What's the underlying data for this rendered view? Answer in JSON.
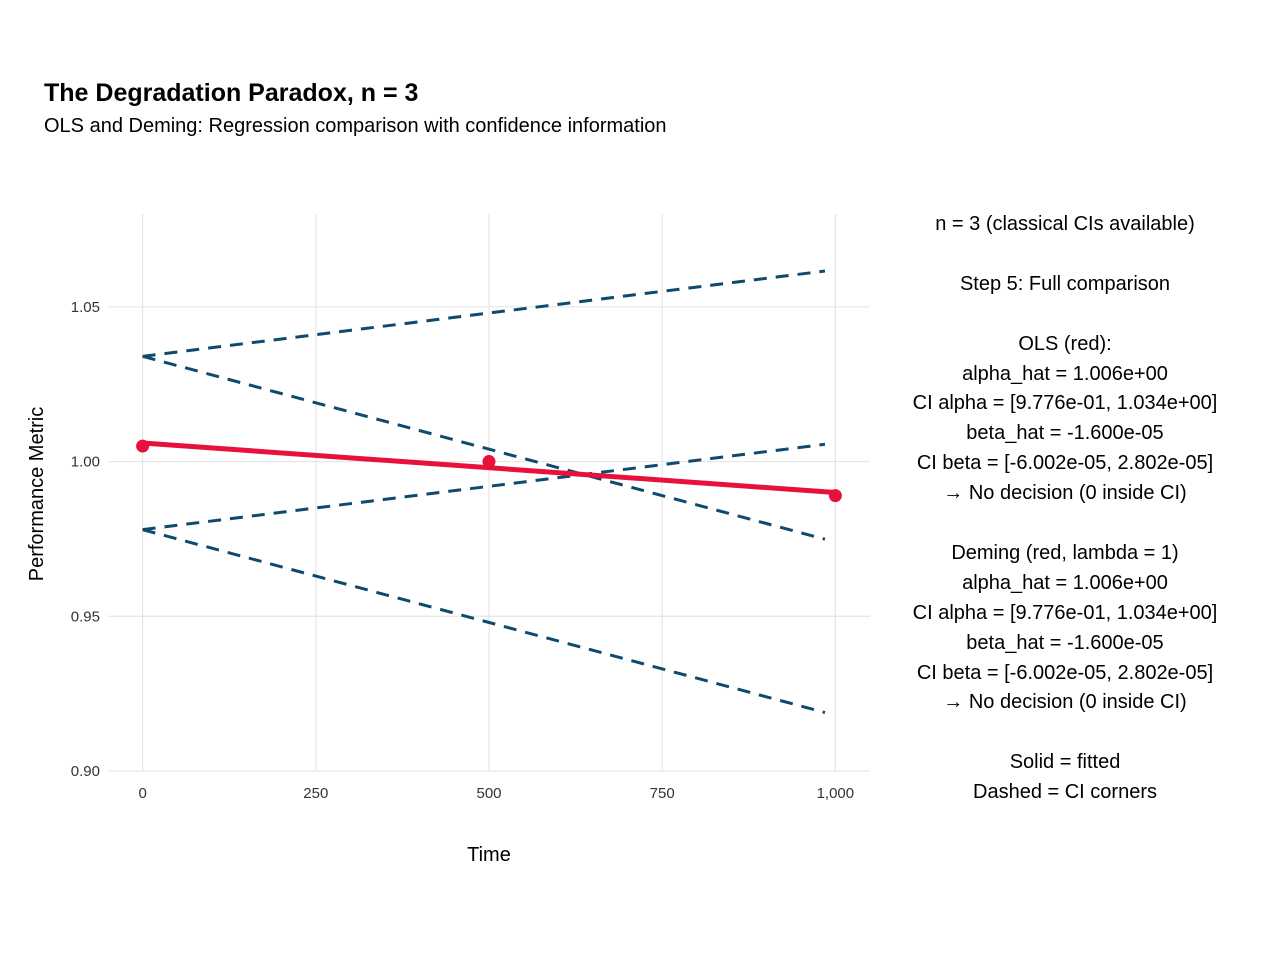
{
  "header": {
    "title": "The Degradation Paradox, n = 3",
    "subtitle": "OLS and Deming: Regression comparison with confidence information"
  },
  "colors": {
    "fit": "#e8113c",
    "ci": "#0d4a6e",
    "grid": "#e6e6e6"
  },
  "chart_data": {
    "type": "line",
    "title": "The Degradation Paradox, n = 3",
    "subtitle": "OLS and Deming: Regression comparison with confidence information",
    "xlabel": "Time",
    "ylabel": "Performance Metric",
    "xlim": [
      -50,
      1050
    ],
    "ylim": [
      0.9,
      1.08
    ],
    "x_ticks": [
      0,
      250,
      500,
      750,
      1000
    ],
    "x_tick_labels": [
      "0",
      "250",
      "500",
      "750",
      "1,000"
    ],
    "y_ticks": [
      0.9,
      0.95,
      1.0,
      1.05
    ],
    "y_tick_labels": [
      "0.90",
      "0.95",
      "1.00",
      "1.05"
    ],
    "grid": true,
    "points": [
      {
        "x": 0,
        "y": 1.005
      },
      {
        "x": 500,
        "y": 1.0
      },
      {
        "x": 1000,
        "y": 0.989
      }
    ],
    "fitted_line": {
      "x": [
        0,
        1000
      ],
      "y": [
        1.006,
        0.99
      ]
    },
    "ci_corner_lines": [
      {
        "x": [
          0,
          1000
        ],
        "y": [
          1.034,
          1.062
        ]
      },
      {
        "x": [
          0,
          1000
        ],
        "y": [
          1.034,
          0.974
        ]
      },
      {
        "x": [
          0,
          1000
        ],
        "y": [
          0.978,
          1.006
        ]
      },
      {
        "x": [
          0,
          1000
        ],
        "y": [
          0.978,
          0.918
        ]
      }
    ]
  },
  "annotation": {
    "lines": [
      "n = 3 (classical CIs available)",
      "",
      "Step 5: Full comparison",
      "",
      "OLS (red):",
      "alpha_hat = 1.006e+00",
      "CI alpha = [9.776e-01, 1.034e+00]",
      "beta_hat  = -1.600e-05",
      "CI beta = [-6.002e-05, 2.802e-05]",
      "→ No decision (0 inside CI)",
      "",
      "Deming (red, lambda = 1)",
      "alpha_hat = 1.006e+00",
      "CI alpha = [9.776e-01, 1.034e+00]",
      "beta_hat  = -1.600e-05",
      "CI beta = [-6.002e-05, 2.802e-05]",
      "→ No decision (0 inside CI)",
      "",
      "Solid = fitted",
      "Dashed = CI corners"
    ]
  }
}
